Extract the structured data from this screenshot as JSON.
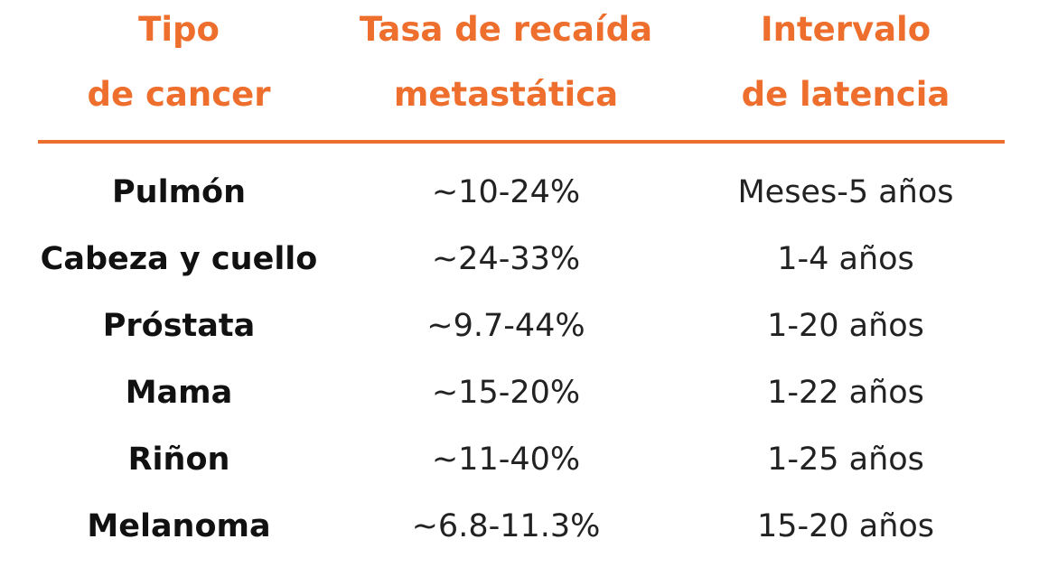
{
  "table": {
    "header": [
      [
        "Tipo",
        "de cancer"
      ],
      [
        "Tasa de recaída",
        "metastática"
      ],
      [
        "Intervalo",
        "de latencia"
      ]
    ],
    "rows": [
      [
        "Pulmón",
        "~10-24%",
        "Meses-5 años"
      ],
      [
        "Cabeza y cuello",
        "~24-33%",
        "1-4 años"
      ],
      [
        "Próstata",
        "~9.7-44%",
        "1-20 años"
      ],
      [
        "Mama",
        "~15-20%",
        "1-22 años"
      ],
      [
        "Riñon",
        "~11-40%",
        "1-25 años"
      ],
      [
        "Melanoma",
        "~6.8-11.3%",
        "15-20 años"
      ]
    ]
  }
}
